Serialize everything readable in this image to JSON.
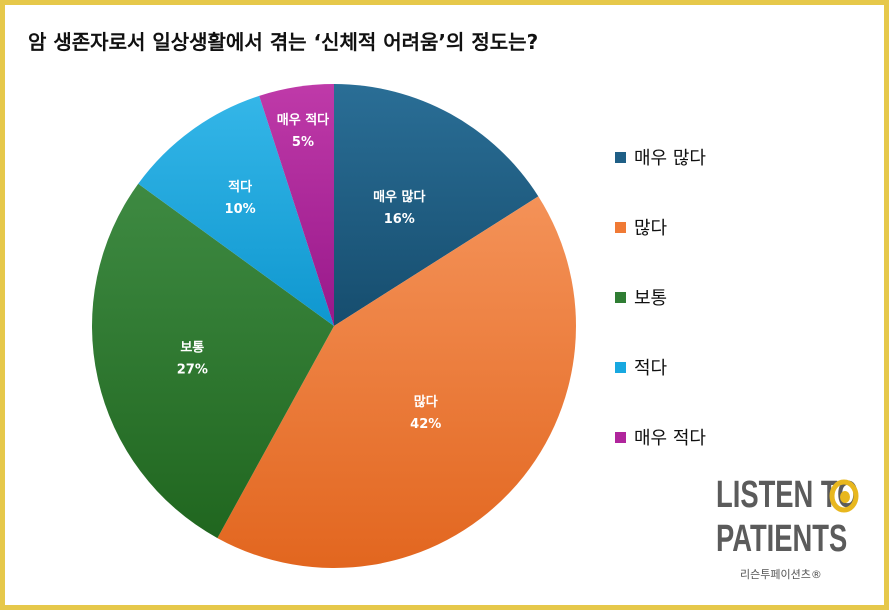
{
  "chart_data": {
    "type": "pie",
    "title": "암 생존자로서 일상생활에서 겪는 ‘신체적 어려움’의 정도는?",
    "categories": [
      "매우 많다",
      "많다",
      "보통",
      "적다",
      "매우 적다"
    ],
    "values": [
      16,
      42,
      27,
      10,
      5
    ],
    "data_labels": [
      "16%",
      "42%",
      "27%",
      "10%",
      "5%"
    ],
    "slice_labels": [
      "매우 많다",
      "많다",
      "보통",
      "적다",
      "매우 적다"
    ],
    "colors": [
      "#1f5f86",
      "#f07a35",
      "#2f7d33",
      "#18a8e0",
      "#b0259c"
    ],
    "start_angle": "12 o'clock, clockwise",
    "legend_position": "right"
  },
  "logo": {
    "line1": "LISTEN TO",
    "line2": "PATIENTS",
    "sub": "리슨투페이션츠®"
  }
}
